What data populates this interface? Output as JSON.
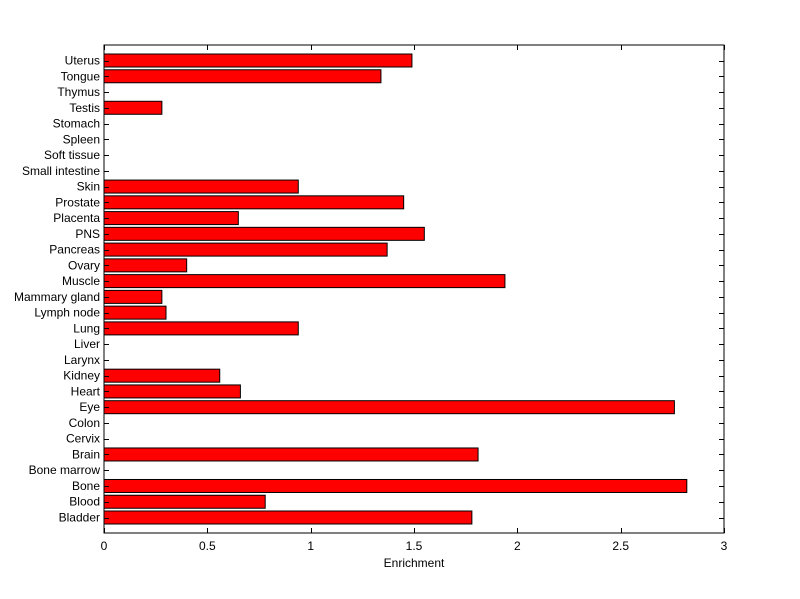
{
  "chart_data": {
    "type": "bar",
    "orientation": "horizontal",
    "xlabel": "Enrichment",
    "ylabel": "",
    "title": "",
    "xlim": [
      0,
      3
    ],
    "x_ticks": [
      "0",
      "0.5",
      "1",
      "1.5",
      "2",
      "2.5",
      "3"
    ],
    "x_tick_values": [
      0,
      0.5,
      1,
      1.5,
      2,
      2.5,
      3
    ],
    "grid": false,
    "legend": "none",
    "bar_color": "#ff0000",
    "categories": [
      "Bladder",
      "Blood",
      "Bone",
      "Bone marrow",
      "Brain",
      "Cervix",
      "Colon",
      "Eye",
      "Heart",
      "Kidney",
      "Larynx",
      "Liver",
      "Lung",
      "Lymph node",
      "Mammary gland",
      "Muscle",
      "Ovary",
      "Pancreas",
      "PNS",
      "Placenta",
      "Prostate",
      "Skin",
      "Small intestine",
      "Soft tissue",
      "Spleen",
      "Stomach",
      "Testis",
      "Thymus",
      "Tongue",
      "Uterus"
    ],
    "values": [
      1.78,
      0.78,
      2.82,
      0,
      1.81,
      0,
      0,
      2.76,
      0.66,
      0.56,
      0,
      0,
      0.94,
      0.3,
      0.28,
      1.94,
      0.4,
      1.37,
      1.55,
      0.65,
      1.45,
      0.94,
      0,
      0,
      0,
      0,
      0.28,
      0,
      1.34,
      1.49
    ]
  }
}
